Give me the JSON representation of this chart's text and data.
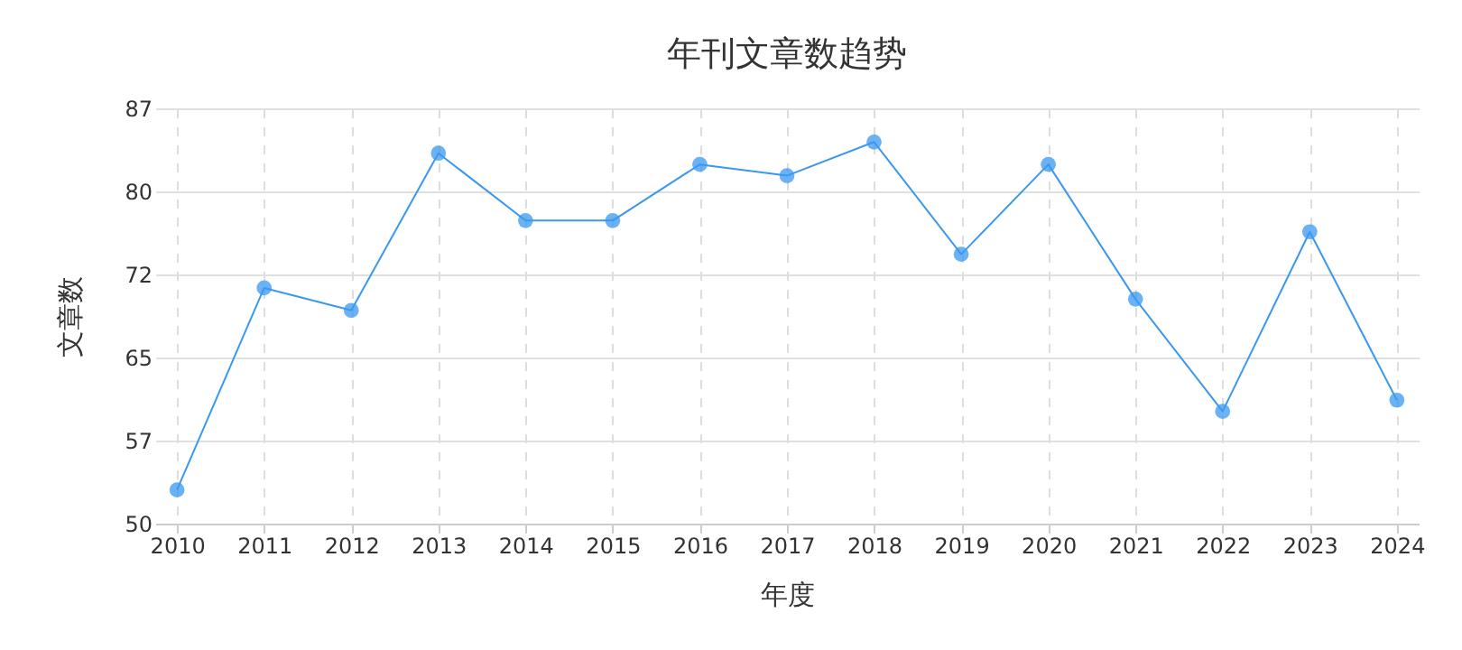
{
  "chart_data": {
    "type": "line",
    "title": "年刊文章数趋势",
    "xlabel": "年度",
    "ylabel": "文章数",
    "categories": [
      "2010",
      "2011",
      "2012",
      "2013",
      "2014",
      "2015",
      "2016",
      "2017",
      "2018",
      "2019",
      "2020",
      "2021",
      "2022",
      "2023",
      "2024"
    ],
    "series": [
      {
        "color": "#3a98f0",
        "values": [
          53,
          71,
          69,
          83,
          77,
          77,
          82,
          81,
          84,
          74,
          82,
          70,
          60,
          76,
          61
        ]
      }
    ],
    "ylim": [
      50,
      87
    ],
    "yticks": [
      50,
      {
        "value": 57.4,
        "label": "57"
      },
      {
        "value": 64.8,
        "label": "65"
      },
      {
        "value": 72.2,
        "label": "72"
      },
      {
        "value": 79.6,
        "label": "80"
      },
      87
    ],
    "grid": true,
    "marker": "circle",
    "line_style": "solid"
  }
}
